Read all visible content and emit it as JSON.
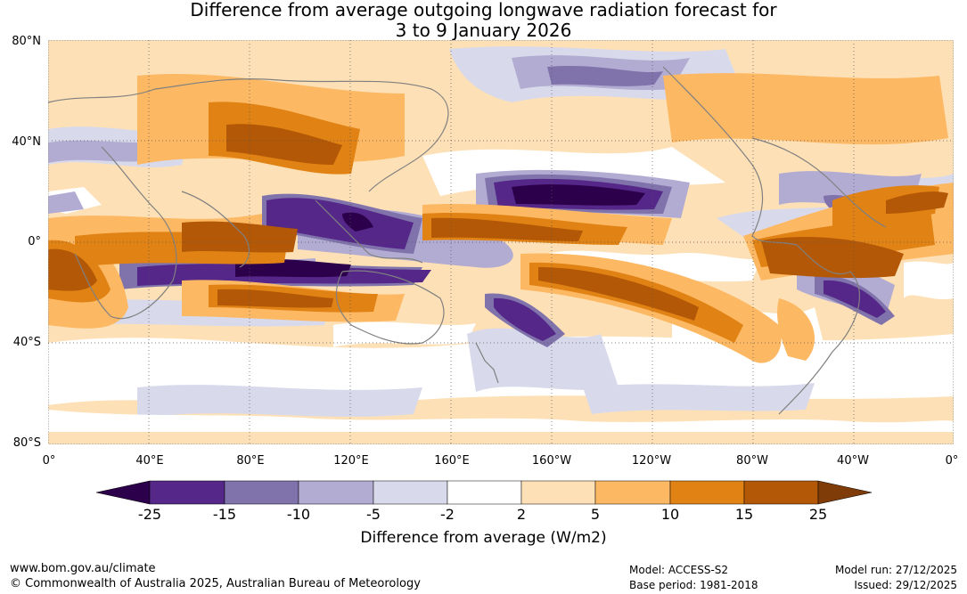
{
  "title": {
    "line1": "Difference from average outgoing longwave radiation forecast for",
    "line2": "3 to 9 January 2026"
  },
  "map": {
    "lat_labels": [
      "80°N",
      "40°N",
      "0°",
      "40°S",
      "80°S"
    ],
    "lon_labels": [
      "0°",
      "40°E",
      "80°E",
      "120°E",
      "160°E",
      "160°W",
      "120°W",
      "80°W",
      "40°W",
      "0°"
    ]
  },
  "colorbar": {
    "colors": [
      "#2d004b",
      "#542788",
      "#8073ac",
      "#b2abd2",
      "#d8daeb",
      "#ffffff",
      "#fee0b6",
      "#fdb863",
      "#e08214",
      "#b35806",
      "#7f3b08"
    ],
    "ticks": [
      "-25",
      "-15",
      "-10",
      "-5",
      "-2",
      "2",
      "5",
      "10",
      "15",
      "25"
    ],
    "label": "Difference from average (W/m2)"
  },
  "footer": {
    "url": "www.bom.gov.au/climate",
    "copyright": "© Commonwealth of Australia 2025, Australian Bureau of Meteorology",
    "model": "Model: ACCESS-S2",
    "base_period": "Base period: 1981-2018",
    "model_run": "Model run: 27/12/2025",
    "issued": "Issued: 29/12/2025"
  }
}
